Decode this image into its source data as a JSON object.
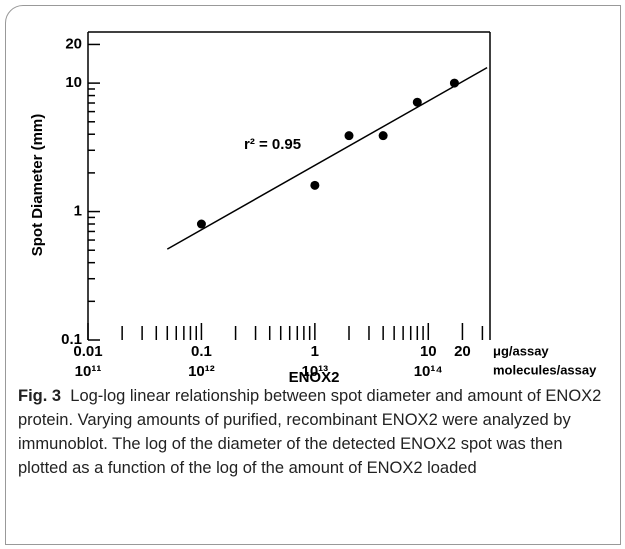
{
  "chart_data": {
    "type": "scatter",
    "y_label": "Spot Diameter (mm)",
    "x_label": "ENOX2",
    "x_unit": "μg/assay",
    "x2_unit": "molecules/assay",
    "annotation": "r² = 0.95",
    "log_x": true,
    "log_y": true,
    "color": "#000000",
    "points": {
      "x": [
        0.1,
        1,
        2,
        4,
        8,
        17
      ],
      "values": [
        0.8,
        1.6,
        3.9,
        3.9,
        7.1,
        10
      ]
    },
    "fit_line": {
      "x": [
        0.05,
        33
      ],
      "values": [
        0.51,
        13.2
      ]
    },
    "xlim": [
      0.01,
      35
    ],
    "ylim": [
      0.1,
      25
    ],
    "xticks": [
      0.01,
      0.1,
      1,
      10,
      20
    ],
    "x2ticks": [
      {
        "value": 0.01,
        "label": "10¹¹"
      },
      {
        "value": 0.1,
        "label": "10¹²"
      },
      {
        "value": 1,
        "label": "10¹³"
      },
      {
        "value": 10,
        "label": "10¹⁴"
      }
    ],
    "xminor": [
      0.02,
      0.03,
      0.04,
      0.05,
      0.06,
      0.07,
      0.08,
      0.09,
      0.2,
      0.3,
      0.4,
      0.5,
      0.6,
      0.7,
      0.8,
      0.9,
      2,
      3,
      4,
      5,
      6,
      7,
      8,
      9,
      30
    ],
    "yticks": [
      0.1,
      1,
      10,
      20
    ],
    "yminor": [
      0.2,
      0.3,
      0.4,
      0.5,
      0.6,
      0.7,
      0.8,
      0.9,
      2,
      3,
      4,
      5,
      6,
      7,
      8,
      9
    ]
  },
  "caption": {
    "label": "Fig. 3",
    "text": "Log-log linear relationship between spot diameter and amount of ENOX2 protein. Varying amounts of purified, recombinant ENOX2 were analyzed by immunoblot. The log of the diameter of the detected ENOX2 spot was then plotted as a function of the log of the amount of ENOX2 loaded"
  }
}
